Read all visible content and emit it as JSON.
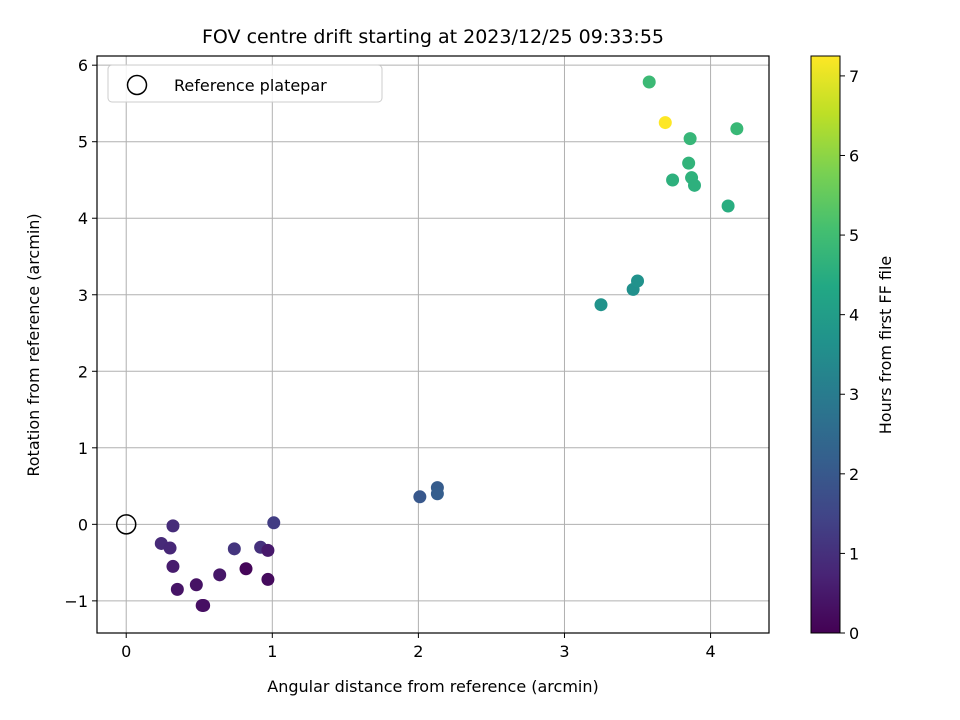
{
  "chart_data": {
    "type": "scatter",
    "title": "FOV centre drift starting at 2023/12/25 09:33:55",
    "xlabel": "Angular distance from reference (arcmin)",
    "ylabel": "Rotation from reference (arcmin)",
    "xlim": [
      -0.2,
      4.4
    ],
    "ylim": [
      -1.42,
      6.12
    ],
    "x_ticks": [
      0,
      1,
      2,
      3,
      4
    ],
    "y_ticks": [
      -1,
      0,
      1,
      2,
      3,
      4,
      5,
      6
    ],
    "grid": true,
    "legend": {
      "position": "top-left",
      "entries": [
        {
          "label": "Reference platepar",
          "marker": "open-circle"
        }
      ]
    },
    "reference_point": {
      "x": 0,
      "y": 0
    },
    "colorbar": {
      "label": "Hours from first FF file",
      "colormap": "viridis",
      "range": [
        0,
        7.25
      ],
      "ticks": [
        0,
        1,
        2,
        3,
        4,
        5,
        6,
        7
      ]
    },
    "points": [
      {
        "x": 0.24,
        "y": -0.25,
        "c": 0.85
      },
      {
        "x": 0.3,
        "y": -0.31,
        "c": 0.8
      },
      {
        "x": 0.32,
        "y": -0.02,
        "c": 0.9
      },
      {
        "x": 0.32,
        "y": -0.55,
        "c": 0.55
      },
      {
        "x": 0.35,
        "y": -0.85,
        "c": 0.4
      },
      {
        "x": 0.48,
        "y": -0.79,
        "c": 0.35
      },
      {
        "x": 0.52,
        "y": -1.06,
        "c": 0.3
      },
      {
        "x": 0.53,
        "y": -1.06,
        "c": 0.3
      },
      {
        "x": 0.64,
        "y": -0.66,
        "c": 0.45
      },
      {
        "x": 0.74,
        "y": -0.32,
        "c": 1.1
      },
      {
        "x": 0.82,
        "y": -0.58,
        "c": 0.1
      },
      {
        "x": 0.92,
        "y": -0.3,
        "c": 1.0
      },
      {
        "x": 0.97,
        "y": -0.34,
        "c": 0.5
      },
      {
        "x": 0.97,
        "y": -0.72,
        "c": 0.2
      },
      {
        "x": 1.01,
        "y": 0.02,
        "c": 1.3
      },
      {
        "x": 2.01,
        "y": 0.36,
        "c": 2.0
      },
      {
        "x": 2.13,
        "y": 0.48,
        "c": 2.1
      },
      {
        "x": 2.13,
        "y": 0.4,
        "c": 2.15
      },
      {
        "x": 3.25,
        "y": 2.87,
        "c": 3.7
      },
      {
        "x": 3.47,
        "y": 3.07,
        "c": 3.6
      },
      {
        "x": 3.5,
        "y": 3.18,
        "c": 3.65
      },
      {
        "x": 3.58,
        "y": 5.78,
        "c": 4.9
      },
      {
        "x": 3.69,
        "y": 5.25,
        "c": 7.25
      },
      {
        "x": 3.74,
        "y": 4.5,
        "c": 4.6
      },
      {
        "x": 3.85,
        "y": 4.72,
        "c": 4.7
      },
      {
        "x": 3.86,
        "y": 5.04,
        "c": 4.8
      },
      {
        "x": 3.87,
        "y": 4.53,
        "c": 4.65
      },
      {
        "x": 3.89,
        "y": 4.43,
        "c": 4.6
      },
      {
        "x": 4.12,
        "y": 4.16,
        "c": 4.5
      },
      {
        "x": 4.18,
        "y": 5.17,
        "c": 4.85
      }
    ]
  }
}
